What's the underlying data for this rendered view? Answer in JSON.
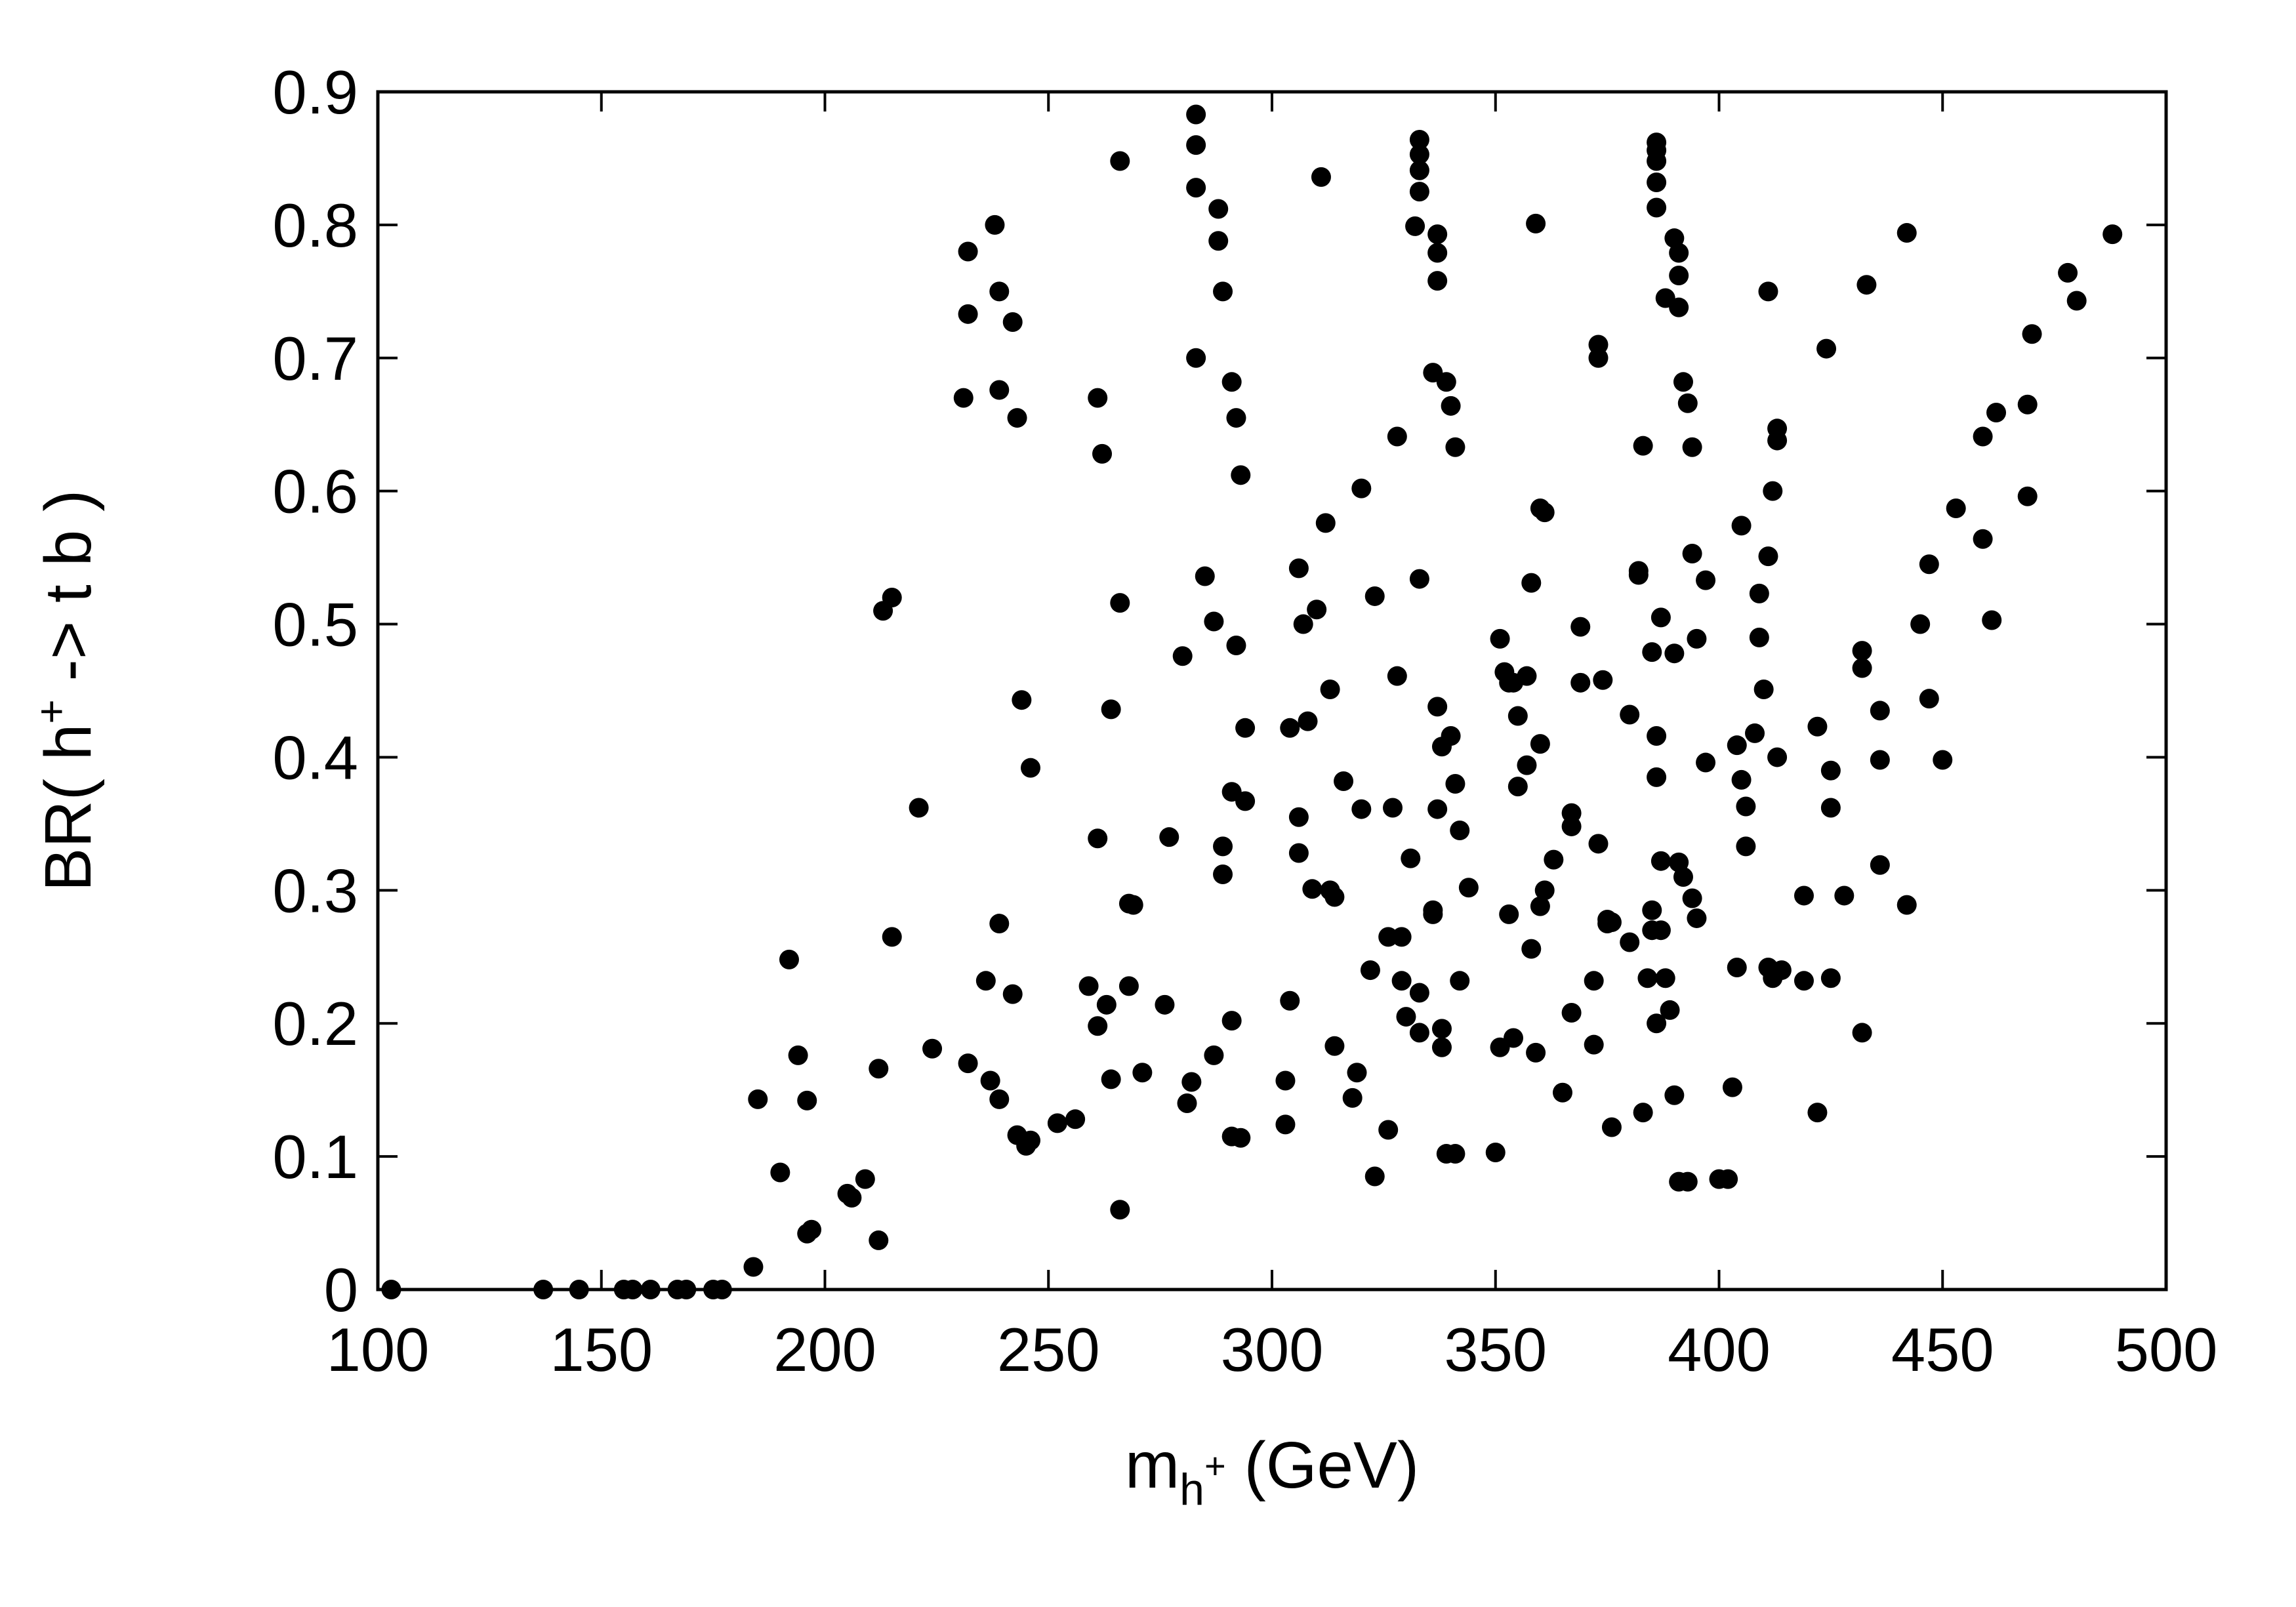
{
  "chart_data": {
    "type": "scatter",
    "title": "",
    "xlabel": {
      "base": "m",
      "sub": "h",
      "sup": "+",
      "rest": " (GeV)"
    },
    "ylabel": {
      "pre": "BR( h",
      "sup": "+",
      "post": " -> t b )"
    },
    "xlim": [
      100,
      500
    ],
    "ylim": [
      0,
      0.9
    ],
    "xticks": [
      100,
      150,
      200,
      250,
      300,
      350,
      400,
      450,
      500
    ],
    "yticks": [
      0,
      0.1,
      0.2,
      0.3,
      0.4,
      0.5,
      0.6,
      0.7,
      0.8,
      0.9
    ],
    "xtick_labels": [
      "100",
      "150",
      "200",
      "250",
      "300",
      "350",
      "400",
      "450",
      "500"
    ],
    "ytick_labels": [
      "0",
      "0.1",
      "0.2",
      "0.3",
      "0.4",
      "0.5",
      "0.6",
      "0.7",
      "0.8",
      "0.9"
    ],
    "grid": false,
    "marker_color": "#000000",
    "points": [
      [
        103,
        0.0
      ],
      [
        137,
        0.0
      ],
      [
        145,
        0.0
      ],
      [
        155,
        0.0
      ],
      [
        157,
        0.0
      ],
      [
        161,
        0.0
      ],
      [
        167,
        0.0
      ],
      [
        169,
        0.0
      ],
      [
        175,
        0.0
      ],
      [
        177,
        0.0
      ],
      [
        184,
        0.017
      ],
      [
        185,
        0.143
      ],
      [
        190,
        0.088
      ],
      [
        192,
        0.248
      ],
      [
        194,
        0.176
      ],
      [
        196,
        0.142
      ],
      [
        196,
        0.042
      ],
      [
        197,
        0.045
      ],
      [
        205,
        0.072
      ],
      [
        206,
        0.069
      ],
      [
        209,
        0.083
      ],
      [
        212,
        0.037
      ],
      [
        212,
        0.166
      ],
      [
        213,
        0.51
      ],
      [
        215,
        0.52
      ],
      [
        215,
        0.265
      ],
      [
        221,
        0.362
      ],
      [
        224,
        0.181
      ],
      [
        231,
        0.67
      ],
      [
        232,
        0.78
      ],
      [
        232,
        0.733
      ],
      [
        232,
        0.17
      ],
      [
        236,
        0.232
      ],
      [
        237,
        0.157
      ],
      [
        238,
        0.8
      ],
      [
        239,
        0.75
      ],
      [
        239,
        0.676
      ],
      [
        239,
        0.275
      ],
      [
        239,
        0.143
      ],
      [
        242,
        0.727
      ],
      [
        242,
        0.222
      ],
      [
        243,
        0.655
      ],
      [
        243,
        0.116
      ],
      [
        244,
        0.443
      ],
      [
        245,
        0.108
      ],
      [
        246,
        0.392
      ],
      [
        246,
        0.112
      ],
      [
        252,
        0.125
      ],
      [
        256,
        0.128
      ],
      [
        259,
        0.228
      ],
      [
        261,
        0.67
      ],
      [
        261,
        0.198
      ],
      [
        261,
        0.339
      ],
      [
        262,
        0.628
      ],
      [
        263,
        0.214
      ],
      [
        264,
        0.436
      ],
      [
        264,
        0.158
      ],
      [
        266,
        0.516
      ],
      [
        266,
        0.848
      ],
      [
        266,
        0.06
      ],
      [
        268,
        0.228
      ],
      [
        268,
        0.29
      ],
      [
        269,
        0.289
      ],
      [
        271,
        0.163
      ],
      [
        276,
        0.214
      ],
      [
        277,
        0.34
      ],
      [
        280,
        0.476
      ],
      [
        281,
        0.14
      ],
      [
        282,
        0.156
      ],
      [
        283,
        0.883
      ],
      [
        283,
        0.86
      ],
      [
        283,
        0.828
      ],
      [
        283,
        0.7
      ],
      [
        285,
        0.536
      ],
      [
        287,
        0.502
      ],
      [
        287,
        0.176
      ],
      [
        288,
        0.812
      ],
      [
        288,
        0.788
      ],
      [
        289,
        0.75
      ],
      [
        289,
        0.312
      ],
      [
        289,
        0.333
      ],
      [
        291,
        0.682
      ],
      [
        291,
        0.374
      ],
      [
        291,
        0.202
      ],
      [
        291,
        0.115
      ],
      [
        292,
        0.655
      ],
      [
        292,
        0.484
      ],
      [
        293,
        0.612
      ],
      [
        294,
        0.422
      ],
      [
        293,
        0.114
      ],
      [
        294,
        0.367
      ],
      [
        303,
        0.157
      ],
      [
        303,
        0.124
      ],
      [
        304,
        0.217
      ],
      [
        304,
        0.422
      ],
      [
        306,
        0.542
      ],
      [
        306,
        0.355
      ],
      [
        306,
        0.328
      ],
      [
        307,
        0.5
      ],
      [
        308,
        0.427
      ],
      [
        309,
        0.301
      ],
      [
        310,
        0.511
      ],
      [
        311,
        0.836
      ],
      [
        312,
        0.576
      ],
      [
        313,
        0.451
      ],
      [
        313,
        0.3
      ],
      [
        314,
        0.295
      ],
      [
        314,
        0.183
      ],
      [
        316,
        0.382
      ],
      [
        318,
        0.144
      ],
      [
        319,
        0.163
      ],
      [
        320,
        0.602
      ],
      [
        320,
        0.361
      ],
      [
        322,
        0.24
      ],
      [
        323,
        0.085
      ],
      [
        323,
        0.521
      ],
      [
        326,
        0.265
      ],
      [
        326,
        0.12
      ],
      [
        327,
        0.362
      ],
      [
        328,
        0.461
      ],
      [
        328,
        0.641
      ],
      [
        329,
        0.265
      ],
      [
        329,
        0.232
      ],
      [
        330,
        0.205
      ],
      [
        331,
        0.324
      ],
      [
        332,
        0.799
      ],
      [
        333,
        0.864
      ],
      [
        333,
        0.853
      ],
      [
        333,
        0.841
      ],
      [
        333,
        0.825
      ],
      [
        333,
        0.534
      ],
      [
        333,
        0.193
      ],
      [
        333,
        0.223
      ],
      [
        336,
        0.689
      ],
      [
        336,
        0.285
      ],
      [
        336,
        0.282
      ],
      [
        337,
        0.793
      ],
      [
        337,
        0.779
      ],
      [
        337,
        0.758
      ],
      [
        337,
        0.438
      ],
      [
        337,
        0.361
      ],
      [
        338,
        0.196
      ],
      [
        338,
        0.182
      ],
      [
        338,
        0.408
      ],
      [
        339,
        0.682
      ],
      [
        339,
        0.102
      ],
      [
        340,
        0.664
      ],
      [
        340,
        0.416
      ],
      [
        341,
        0.102
      ],
      [
        341,
        0.633
      ],
      [
        341,
        0.38
      ],
      [
        342,
        0.232
      ],
      [
        342,
        0.345
      ],
      [
        344,
        0.302
      ],
      [
        350,
        0.103
      ],
      [
        351,
        0.489
      ],
      [
        351,
        0.182
      ],
      [
        352,
        0.464
      ],
      [
        353,
        0.456
      ],
      [
        353,
        0.282
      ],
      [
        354,
        0.189
      ],
      [
        354,
        0.456
      ],
      [
        355,
        0.431
      ],
      [
        355,
        0.378
      ],
      [
        357,
        0.461
      ],
      [
        357,
        0.394
      ],
      [
        358,
        0.531
      ],
      [
        358,
        0.256
      ],
      [
        359,
        0.801
      ],
      [
        359,
        0.178
      ],
      [
        360,
        0.587
      ],
      [
        360,
        0.41
      ],
      [
        360,
        0.288
      ],
      [
        361,
        0.584
      ],
      [
        361,
        0.3
      ],
      [
        363,
        0.323
      ],
      [
        365,
        0.148
      ],
      [
        367,
        0.208
      ],
      [
        367,
        0.358
      ],
      [
        367,
        0.348
      ],
      [
        369,
        0.498
      ],
      [
        369,
        0.456
      ],
      [
        372,
        0.232
      ],
      [
        372,
        0.184
      ],
      [
        373,
        0.335
      ],
      [
        373,
        0.71
      ],
      [
        373,
        0.7
      ],
      [
        374,
        0.458
      ],
      [
        375,
        0.278
      ],
      [
        375,
        0.275
      ],
      [
        376,
        0.122
      ],
      [
        376,
        0.276
      ],
      [
        380,
        0.261
      ],
      [
        380,
        0.432
      ],
      [
        382,
        0.54
      ],
      [
        382,
        0.537
      ],
      [
        383,
        0.634
      ],
      [
        383,
        0.133
      ],
      [
        384,
        0.234
      ],
      [
        385,
        0.479
      ],
      [
        385,
        0.285
      ],
      [
        385,
        0.27
      ],
      [
        386,
        0.862
      ],
      [
        386,
        0.856
      ],
      [
        386,
        0.848
      ],
      [
        386,
        0.832
      ],
      [
        386,
        0.813
      ],
      [
        386,
        0.416
      ],
      [
        386,
        0.385
      ],
      [
        386,
        0.2
      ],
      [
        387,
        0.505
      ],
      [
        387,
        0.322
      ],
      [
        387,
        0.27
      ],
      [
        388,
        0.745
      ],
      [
        388,
        0.234
      ],
      [
        389,
        0.21
      ],
      [
        390,
        0.79
      ],
      [
        390,
        0.478
      ],
      [
        390,
        0.146
      ],
      [
        391,
        0.779
      ],
      [
        391,
        0.762
      ],
      [
        391,
        0.738
      ],
      [
        391,
        0.321
      ],
      [
        391,
        0.081
      ],
      [
        392,
        0.682
      ],
      [
        392,
        0.31
      ],
      [
        393,
        0.666
      ],
      [
        393,
        0.081
      ],
      [
        394,
        0.633
      ],
      [
        394,
        0.553
      ],
      [
        394,
        0.294
      ],
      [
        395,
        0.489
      ],
      [
        395,
        0.279
      ],
      [
        397,
        0.396
      ],
      [
        397,
        0.533
      ],
      [
        400,
        0.083
      ],
      [
        402,
        0.083
      ],
      [
        403,
        0.152
      ],
      [
        404,
        0.409
      ],
      [
        404,
        0.242
      ],
      [
        405,
        0.574
      ],
      [
        405,
        0.383
      ],
      [
        406,
        0.363
      ],
      [
        406,
        0.333
      ],
      [
        408,
        0.418
      ],
      [
        409,
        0.523
      ],
      [
        409,
        0.49
      ],
      [
        410,
        0.451
      ],
      [
        411,
        0.75
      ],
      [
        411,
        0.551
      ],
      [
        411,
        0.242
      ],
      [
        412,
        0.6
      ],
      [
        412,
        0.234
      ],
      [
        412,
        0.238
      ],
      [
        413,
        0.647
      ],
      [
        413,
        0.638
      ],
      [
        413,
        0.4
      ],
      [
        414,
        0.24
      ],
      [
        419,
        0.296
      ],
      [
        419,
        0.232
      ],
      [
        422,
        0.423
      ],
      [
        422,
        0.133
      ],
      [
        424,
        0.707
      ],
      [
        425,
        0.362
      ],
      [
        425,
        0.39
      ],
      [
        425,
        0.234
      ],
      [
        428,
        0.296
      ],
      [
        432,
        0.48
      ],
      [
        432,
        0.467
      ],
      [
        432,
        0.193
      ],
      [
        433,
        0.755
      ],
      [
        436,
        0.435
      ],
      [
        436,
        0.398
      ],
      [
        436,
        0.319
      ],
      [
        442,
        0.794
      ],
      [
        442,
        0.289
      ],
      [
        445,
        0.5
      ],
      [
        447,
        0.545
      ],
      [
        447,
        0.444
      ],
      [
        450,
        0.398
      ],
      [
        453,
        0.587
      ],
      [
        459,
        0.564
      ],
      [
        459,
        0.641
      ],
      [
        461,
        0.503
      ],
      [
        462,
        0.659
      ],
      [
        469,
        0.596
      ],
      [
        469,
        0.665
      ],
      [
        470,
        0.718
      ],
      [
        478,
        0.764
      ],
      [
        480,
        0.743
      ],
      [
        488,
        0.793
      ]
    ]
  }
}
